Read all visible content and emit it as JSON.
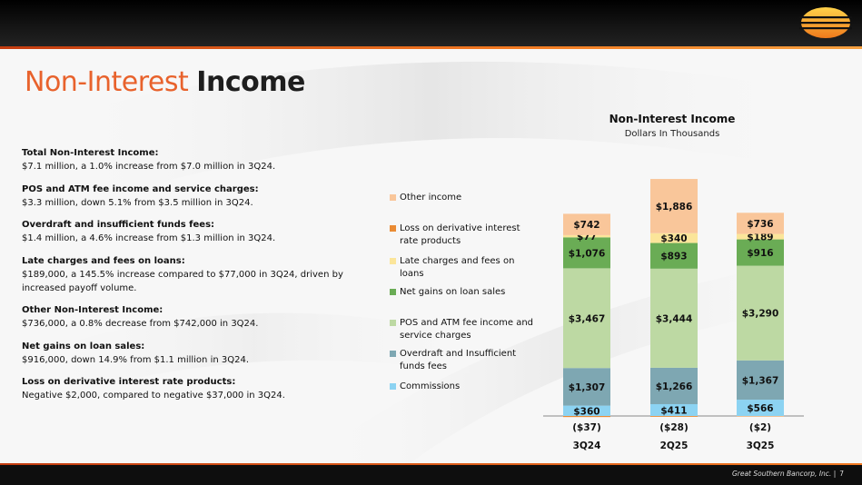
{
  "slide": {
    "title_light": "Non-Interest",
    "title_bold": "Income",
    "footer": "Great Southern Bancorp, Inc.",
    "footer_sep": "|",
    "page": "7"
  },
  "colors": {
    "accent": "#e8622c",
    "dark": "#111111",
    "Other income": "#f9c69a",
    "Loss on derivative interest rate products": "#ea8b34",
    "Late charges and fees on loans": "#fbe59a",
    "Net gains on loan sales": "#6aac55",
    "POS and ATM fee income and service charges": "#bdd9a3",
    "Overdraft and Insufficient funds fees": "#7ea7b2",
    "Commissions": "#8cd3f2"
  },
  "notes": [
    {
      "heading": "Total Non-Interest Income:",
      "body": "$7.1 million, a 1.0% increase from $7.0 million in 3Q24."
    },
    {
      "heading": "POS and ATM fee income and service charges:",
      "body": "$3.3 million, down 5.1% from $3.5 million in 3Q24."
    },
    {
      "heading": "Overdraft and insufficient funds fees:",
      "body": "$1.4 million, a 4.6% increase from $1.3 million in 3Q24."
    },
    {
      "heading": "Late charges and fees on loans:",
      "body": "$189,000, a 145.5% increase compared to $77,000 in 3Q24, driven by increased payoff volume."
    },
    {
      "heading": "Other Non-Interest Income:",
      "body": "$736,000, a 0.8% decrease from $742,000 in 3Q24."
    },
    {
      "heading": "Net gains on loan sales:",
      "body": "$916,000, down 14.9% from $1.1 million in 3Q24."
    },
    {
      "heading": "Loss on derivative interest rate products:",
      "body": "Negative $2,000, compared to negative $37,000 in 3Q24."
    }
  ],
  "chart_data": {
    "type": "bar",
    "stacked": true,
    "title": "Non-Interest Income",
    "subtitle": "Dollars In Thousands",
    "categories": [
      "3Q24",
      "2Q25",
      "3Q25"
    ],
    "legend_position": "left",
    "series": [
      {
        "name": "Commissions",
        "values": [
          360,
          411,
          566
        ],
        "labels": [
          "$360",
          "$411",
          "$566"
        ]
      },
      {
        "name": "Overdraft and Insufficient funds fees",
        "values": [
          1307,
          1266,
          1367
        ],
        "labels": [
          "$1,307",
          "$1,266",
          "$1,367"
        ]
      },
      {
        "name": "POS and ATM fee income and service charges",
        "values": [
          3467,
          3444,
          3290
        ],
        "labels": [
          "$3,467",
          "$3,444",
          "$3,290"
        ]
      },
      {
        "name": "Net gains on loan sales",
        "values": [
          1076,
          893,
          916
        ],
        "labels": [
          "$1,076",
          "$893",
          "$916"
        ]
      },
      {
        "name": "Late charges and fees on loans",
        "values": [
          77,
          340,
          189
        ],
        "labels": [
          "$77",
          "$340",
          "$189"
        ]
      },
      {
        "name": "Loss on derivative interest rate products",
        "values": [
          -37,
          -28,
          -2
        ],
        "labels": [
          "($37)",
          "($28)",
          "($2)"
        ]
      },
      {
        "name": "Other income",
        "values": [
          742,
          1886,
          736
        ],
        "labels": [
          "$742",
          "$1,886",
          "$736"
        ]
      }
    ],
    "legend_order": [
      "Other income",
      "Loss on derivative interest rate products",
      "Late charges and fees on loans",
      "Net gains on loan sales",
      "POS and ATM fee income and service charges",
      "Overdraft and Insufficient funds fees",
      "Commissions"
    ],
    "ylim": [
      -200,
      9000
    ],
    "grid": false
  }
}
